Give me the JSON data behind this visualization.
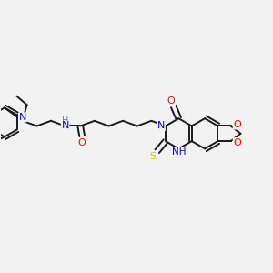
{
  "background_color": "#f2f2f2",
  "bond_color": "#1a1a1a",
  "atom_colors": {
    "N": "#0000ff",
    "O": "#ff0000",
    "S": "#cccc00",
    "C": "#1a1a1a",
    "H": "#1a1a1a"
  },
  "bond_width": 1.4,
  "figsize": [
    3.0,
    3.0
  ],
  "dpi": 100
}
